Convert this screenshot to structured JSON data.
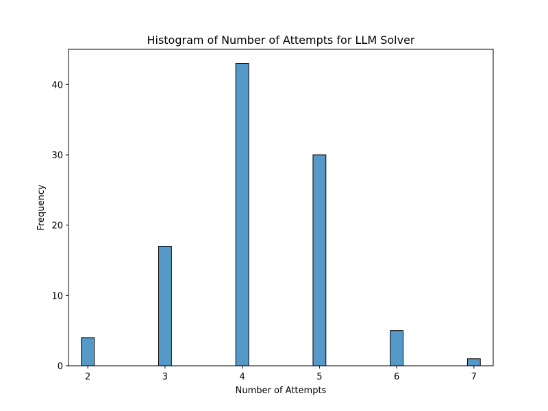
{
  "chart_data": {
    "type": "bar",
    "title": "Histogram of Number of Attempts for LLM Solver",
    "xlabel": "Number of Attempts",
    "ylabel": "Frequency",
    "x": [
      2,
      3,
      4,
      5,
      6,
      7
    ],
    "values": [
      4,
      17,
      43,
      30,
      5,
      1
    ],
    "bin_width": 0.167,
    "xlim": [
      1.75,
      7.25
    ],
    "ylim": [
      0,
      45
    ],
    "xticks": [
      2,
      3,
      4,
      5,
      6,
      7
    ],
    "yticks": [
      0,
      10,
      20,
      30,
      40
    ],
    "bar_color": "#5499c7",
    "edge_color": "#000000",
    "grid": false,
    "legend": "none"
  }
}
